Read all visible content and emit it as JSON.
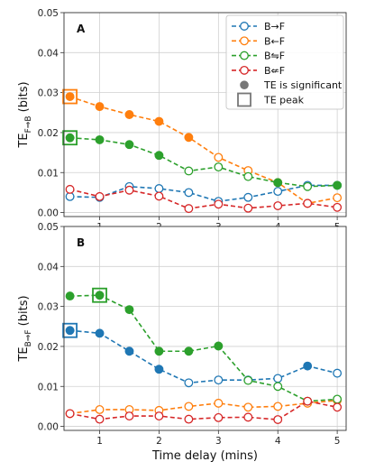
{
  "chart_data": [
    {
      "type": "line",
      "panel_label": "A",
      "ylabel": "TE",
      "ylabel_sub": "F⇒B",
      "ylabel_unit": "(bits)",
      "xlim": [
        0.4,
        5.15
      ],
      "ylim": [
        -0.001,
        0.05
      ],
      "xticks": [
        1,
        2,
        3,
        4,
        5
      ],
      "yticks": [
        0.0,
        0.01,
        0.02,
        0.03,
        0.04,
        0.05
      ],
      "ytick_labels": [
        "0.00",
        "0.01",
        "0.02",
        "0.03",
        "0.04",
        "0.05"
      ],
      "grid": true,
      "legend_position": "upper-right",
      "series": [
        {
          "name": "B→F",
          "color": "#1f77b4",
          "x": [
            0.5,
            1.0,
            1.5,
            2.0,
            2.5,
            3.0,
            3.5,
            4.0,
            4.5,
            5.0
          ],
          "y": [
            0.004,
            0.0038,
            0.0065,
            0.006,
            0.005,
            0.0028,
            0.0038,
            0.0053,
            0.0068,
            0.0068
          ],
          "significant": [
            false,
            false,
            false,
            false,
            false,
            false,
            false,
            false,
            false,
            false
          ],
          "peak_index": null
        },
        {
          "name": "B←F",
          "color": "#ff7f0e",
          "x": [
            0.5,
            1.0,
            1.5,
            2.0,
            2.5,
            3.0,
            3.5,
            4.0,
            4.5,
            5.0
          ],
          "y": [
            0.029,
            0.0265,
            0.0245,
            0.0228,
            0.0188,
            0.0138,
            0.0105,
            0.0075,
            0.0023,
            0.0037
          ],
          "significant": [
            true,
            true,
            true,
            true,
            true,
            false,
            false,
            false,
            false,
            false
          ],
          "peak_index": 0
        },
        {
          "name": "B⇋F",
          "color": "#2ca02c",
          "x": [
            0.5,
            1.0,
            1.5,
            2.0,
            2.5,
            3.0,
            3.5,
            4.0,
            4.5,
            5.0
          ],
          "y": [
            0.0187,
            0.0182,
            0.017,
            0.0143,
            0.0104,
            0.0114,
            0.009,
            0.0075,
            0.0065,
            0.0068
          ],
          "significant": [
            true,
            true,
            true,
            true,
            false,
            false,
            false,
            true,
            false,
            true
          ],
          "peak_index": 0
        },
        {
          "name": "B⇍F",
          "color": "#d62728",
          "x": [
            0.5,
            1.0,
            1.5,
            2.0,
            2.5,
            3.0,
            3.5,
            4.0,
            4.5,
            5.0
          ],
          "y": [
            0.0058,
            0.004,
            0.0056,
            0.0041,
            0.001,
            0.0021,
            0.0011,
            0.0017,
            0.0023,
            0.0013
          ],
          "significant": [
            false,
            false,
            false,
            false,
            false,
            false,
            false,
            false,
            false,
            false
          ],
          "peak_index": null
        }
      ],
      "legend_extra": [
        {
          "label": "TE is significant",
          "marker": "filled-circle"
        },
        {
          "label": "TE peak",
          "marker": "square"
        }
      ]
    },
    {
      "type": "line",
      "panel_label": "B",
      "ylabel": "TE",
      "ylabel_sub": "B⇒F",
      "ylabel_unit": "(bits)",
      "xlabel": "Time delay (mins)",
      "xlim": [
        0.4,
        5.15
      ],
      "ylim": [
        -0.001,
        0.05
      ],
      "xticks": [
        1,
        2,
        3,
        4,
        5
      ],
      "yticks": [
        0.0,
        0.01,
        0.02,
        0.03,
        0.04,
        0.05
      ],
      "ytick_labels": [
        "0.00",
        "0.01",
        "0.02",
        "0.03",
        "0.04",
        "0.05"
      ],
      "grid": true,
      "series": [
        {
          "name": "B→F",
          "color": "#1f77b4",
          "x": [
            0.5,
            1.0,
            1.5,
            2.0,
            2.5,
            3.0,
            3.5,
            4.0,
            4.5,
            5.0
          ],
          "y": [
            0.024,
            0.0233,
            0.0188,
            0.0143,
            0.0109,
            0.0116,
            0.0116,
            0.012,
            0.0151,
            0.0133
          ],
          "significant": [
            true,
            true,
            true,
            true,
            false,
            false,
            false,
            false,
            true,
            false
          ],
          "peak_index": 0
        },
        {
          "name": "B←F",
          "color": "#ff7f0e",
          "x": [
            0.5,
            1.0,
            1.5,
            2.0,
            2.5,
            3.0,
            3.5,
            4.0,
            4.5,
            5.0
          ],
          "y": [
            0.0032,
            0.0042,
            0.0042,
            0.004,
            0.005,
            0.0058,
            0.0048,
            0.005,
            0.0058,
            0.0065
          ],
          "significant": [
            false,
            false,
            false,
            false,
            false,
            false,
            false,
            false,
            false,
            false
          ],
          "peak_index": null
        },
        {
          "name": "B⇋F",
          "color": "#2ca02c",
          "x": [
            0.5,
            1.0,
            1.5,
            2.0,
            2.5,
            3.0,
            3.5,
            4.0,
            4.5,
            5.0
          ],
          "y": [
            0.0326,
            0.0328,
            0.0292,
            0.0188,
            0.0188,
            0.0201,
            0.0115,
            0.01,
            0.0063,
            0.0068
          ],
          "significant": [
            true,
            true,
            true,
            true,
            true,
            true,
            false,
            false,
            false,
            false
          ],
          "peak_index": 1
        },
        {
          "name": "B⇍F",
          "color": "#d62728",
          "x": [
            0.5,
            1.0,
            1.5,
            2.0,
            2.5,
            3.0,
            3.5,
            4.0,
            4.5,
            5.0
          ],
          "y": [
            0.0032,
            0.0018,
            0.0026,
            0.0026,
            0.0018,
            0.0022,
            0.0023,
            0.0017,
            0.0063,
            0.0048
          ],
          "significant": [
            false,
            false,
            false,
            false,
            false,
            false,
            false,
            false,
            false,
            false
          ],
          "peak_index": null
        }
      ]
    }
  ]
}
